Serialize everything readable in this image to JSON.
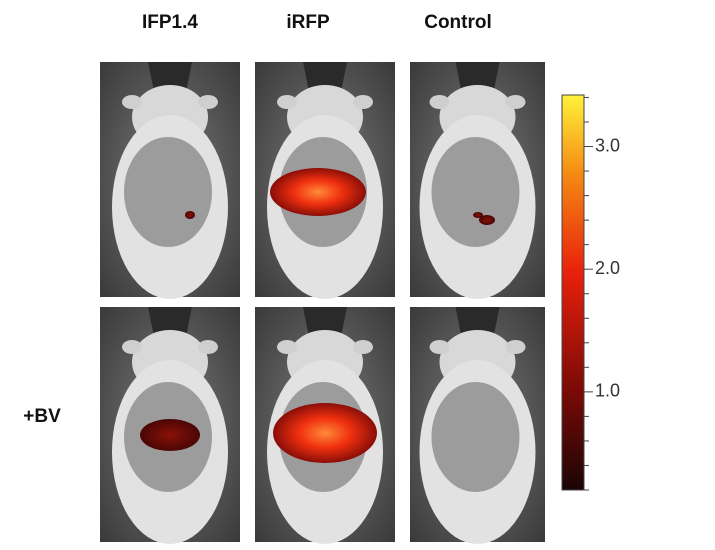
{
  "columns": [
    "IFP1.4",
    "iRFP",
    "Control"
  ],
  "rows": [
    "+BV"
  ],
  "colorbar": {
    "range": [
      0.2,
      3.42
    ],
    "ticks": [
      {
        "value": 1,
        "label": "1.0"
      },
      {
        "value": 2,
        "label": "2.0"
      },
      {
        "value": 3,
        "label": "3.0"
      }
    ],
    "minor_ticks": [
      0.2,
      0.4,
      0.6,
      0.8,
      1.2,
      1.4,
      1.6,
      1.8,
      2.2,
      2.4,
      2.6,
      2.8,
      3.2,
      3.4
    ]
  }
}
